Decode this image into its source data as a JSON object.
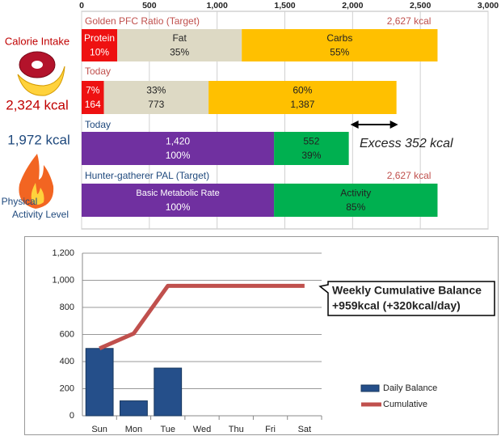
{
  "side_labels": {
    "intake": "Calorie Intake",
    "intake_total": "2,324 kcal",
    "pal_total": "1,972 kcal",
    "pal": [
      "Physical",
      "Activity Level"
    ]
  },
  "chart_data": [
    {
      "type": "stacked_bar_h",
      "xlim": [
        0,
        3000
      ],
      "xticks": [
        0,
        500,
        {
          "value": 1000,
          "label": "1,000"
        },
        {
          "value": 1500,
          "label": "1,500"
        },
        {
          "value": 2000,
          "label": "2,000"
        },
        {
          "value": 2500,
          "label": "2,500"
        },
        {
          "value": 3000,
          "label": "3,000"
        }
      ],
      "grid": true,
      "rows": [
        {
          "label": "Golden PFC Ratio (Target)",
          "label_color": "#c0504d",
          "total_label": "2,627 kcal",
          "show_values": false,
          "percent_first": false,
          "segments": [
            {
              "name": "Protein",
              "value": 263,
              "percent": "10%",
              "color": "#ee1111"
            },
            {
              "name": "Fat",
              "value": 919,
              "percent": "35%",
              "color": "#ddd9c4"
            },
            {
              "name": "Carbs",
              "value": 1445,
              "percent": "55%",
              "color": "#ffc000"
            }
          ]
        },
        {
          "label": "Today",
          "label_color": "#c0504d",
          "show_values": true,
          "percent_first": true,
          "segments": [
            {
              "value": 164,
              "percent": "7%",
              "color": "#ee1111"
            },
            {
              "value": 773,
              "percent": "33%",
              "color": "#ddd9c4"
            },
            {
              "value": 1387,
              "value_label": "1,387",
              "percent": "60%",
              "color": "#ffc000"
            }
          ]
        },
        {
          "label": "Today",
          "label_color": "#1f497d",
          "show_values": true,
          "percent_first": false,
          "segments": [
            {
              "value": 1420,
              "value_label": "1,420",
              "percent": "100%",
              "color": "#7030a0"
            },
            {
              "value": 552,
              "percent": "39%",
              "color": "#00b050"
            }
          ]
        },
        {
          "label": "Hunter-gatherer  PAL (Target)",
          "label_color": "#1f497d",
          "total_label": "2,627 kcal",
          "show_values": false,
          "percent_first": false,
          "segments": [
            {
              "name": "Basic Metabolic Rate",
              "value": 1420,
              "percent": "100%",
              "color": "#7030a0"
            },
            {
              "name": "Activity",
              "value": 1207,
              "percent": "85%",
              "color": "#00b050"
            }
          ]
        }
      ],
      "annotation": {
        "text": "Excess 352 kcal",
        "from": 1972,
        "to": 2324
      }
    },
    {
      "type": "bar_line",
      "categories": [
        "Sun",
        "Mon",
        "Tue",
        "Wed",
        "Thu",
        "Fri",
        "Sat"
      ],
      "series": [
        {
          "name": "Daily Balance",
          "kind": "bar",
          "color": "#254f8a",
          "values": [
            497,
            110,
            352,
            null,
            null,
            null,
            null
          ]
        },
        {
          "name": "Cumulative",
          "kind": "line",
          "color": "#c0504d",
          "values": [
            497,
            607,
            959,
            959,
            959,
            959,
            959
          ]
        }
      ],
      "ylim": [
        0,
        1200
      ],
      "yticks": [
        0,
        200,
        400,
        600,
        800,
        {
          "value": 1000,
          "label": "1,000"
        },
        {
          "value": 1200,
          "label": "1,200"
        }
      ],
      "grid": true,
      "legend": "right",
      "annotation": [
        "Weekly Cumulative Balance",
        "+959kcal (+320kcal/day)"
      ]
    }
  ]
}
